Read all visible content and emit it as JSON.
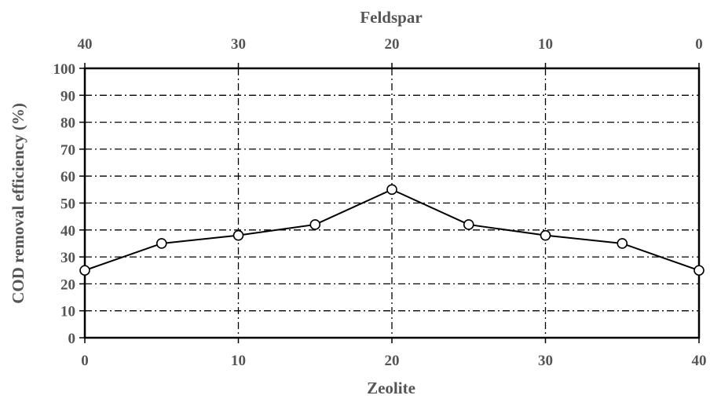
{
  "chart_data": {
    "type": "line",
    "title": "",
    "xlabel": "Zeolite",
    "x2label": "Feldspar",
    "ylabel": "COD removal efficiency (%)",
    "xlim": [
      0,
      40
    ],
    "ylim": [
      0,
      100
    ],
    "x_ticks": [
      "0",
      "10",
      "20",
      "30",
      "40"
    ],
    "x2_ticks": [
      "40",
      "30",
      "20",
      "10",
      "0"
    ],
    "y_ticks": [
      "0",
      "10",
      "20",
      "30",
      "40",
      "50",
      "60",
      "70",
      "80",
      "90",
      "100"
    ],
    "grid": true,
    "marker": "open-circle",
    "colors": {
      "line": "#000000",
      "text": "#555555",
      "grid": "#000000"
    },
    "series": [
      {
        "x": [
          0,
          5,
          10,
          15,
          20,
          25,
          30,
          35,
          40
        ],
        "x2": [
          40,
          35,
          30,
          25,
          20,
          15,
          10,
          5,
          0
        ],
        "values": [
          25,
          35,
          38,
          42,
          55,
          42,
          38,
          35,
          25
        ]
      }
    ]
  }
}
